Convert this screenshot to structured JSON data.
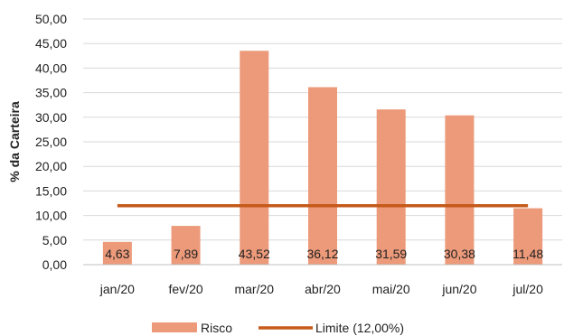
{
  "chart_data": {
    "type": "bar",
    "title": "",
    "xlabel": "",
    "ylabel": "% da Carteira",
    "ylim": [
      0,
      50
    ],
    "ytick_step": 5,
    "ytick_labels": [
      "0,00",
      "5,00",
      "10,00",
      "15,00",
      "20,00",
      "25,00",
      "30,00",
      "35,00",
      "40,00",
      "45,00",
      "50,00"
    ],
    "categories": [
      "jan/20",
      "fev/20",
      "mar/20",
      "abr/20",
      "mai/20",
      "jun/20",
      "jul/20"
    ],
    "series": [
      {
        "name": "Risco",
        "type": "bar",
        "color": "#ec9a7a",
        "values": [
          4.63,
          7.89,
          43.52,
          36.12,
          31.59,
          30.38,
          11.48
        ],
        "data_labels": [
          "4,63",
          "7,89",
          "43,52",
          "36,12",
          "31,59",
          "30,38",
          "11,48"
        ]
      },
      {
        "name": "Limite (12,00%)",
        "type": "line",
        "color": "#c55a1a",
        "values": [
          12,
          12,
          12,
          12,
          12,
          12,
          12
        ]
      }
    ],
    "grid": true,
    "legend": "bottom"
  }
}
